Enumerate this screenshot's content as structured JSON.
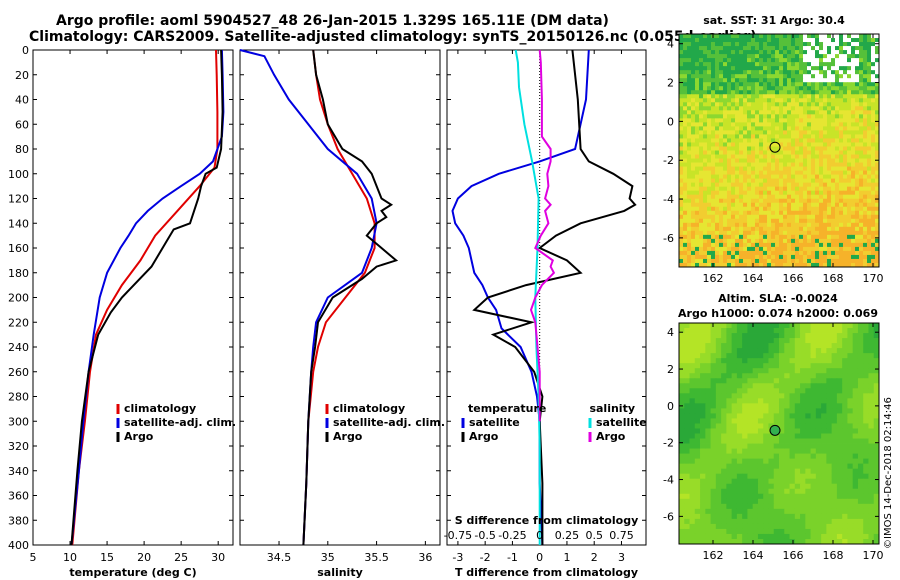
{
  "header": {
    "line1": "Argo profile: aoml 5904527_48 26-Jan-2015 1.329S 165.11E (DM data)",
    "line2": "Climatology: CARS2009. Satellite-adjusted climatology: synTS_20150126.nc (0.055d earlier)"
  },
  "watermark": "©IMOS 14-Dec-2018 02:14:46",
  "colors": {
    "clim": "#e00000",
    "sat": "#0000e0",
    "argo": "#000000",
    "sal_sat": "#00e0e0",
    "sal_argo": "#e000e0"
  },
  "chart_data": [
    {
      "type": "line",
      "name": "temperature",
      "xlabel": "temperature (deg C)",
      "ylabel": "",
      "xlim": [
        5,
        32
      ],
      "ylim": [
        0,
        400
      ],
      "xticks": [
        5,
        10,
        15,
        20,
        25,
        30
      ],
      "yticks": [
        0,
        20,
        40,
        60,
        80,
        100,
        120,
        140,
        160,
        180,
        200,
        220,
        240,
        260,
        280,
        300,
        320,
        340,
        360,
        380,
        400
      ],
      "legend": [
        "climatology",
        "satellite-adj. clim.",
        "Argo"
      ],
      "legend_position": "bottom-right",
      "series": [
        {
          "name": "climatology",
          "depth": [
            0,
            20,
            50,
            80,
            95,
            110,
            130,
            150,
            170,
            190,
            210,
            230,
            260,
            300,
            340,
            400
          ],
          "values": [
            29.7,
            29.8,
            29.9,
            29.9,
            29.5,
            27.5,
            24.5,
            21.5,
            19.5,
            17,
            15,
            13.5,
            12.7,
            12,
            11.2,
            10.3
          ]
        },
        {
          "name": "satellite-adj. clim.",
          "depth": [
            0,
            20,
            50,
            70,
            90,
            100,
            110,
            120,
            130,
            140,
            150,
            160,
            180,
            200,
            230,
            260,
            300,
            340,
            400
          ],
          "values": [
            30.5,
            30.6,
            30.7,
            30.5,
            29.3,
            27.5,
            25,
            22.5,
            20.5,
            18.9,
            17.9,
            16.8,
            15,
            14,
            13.2,
            12.5,
            11.8,
            11.2,
            10.2
          ]
        },
        {
          "name": "Argo",
          "depth": [
            0,
            20,
            50,
            80,
            95,
            100,
            110,
            120,
            140,
            145,
            155,
            175,
            200,
            212,
            230,
            260,
            300,
            340,
            400
          ],
          "values": [
            30.4,
            30.5,
            30.6,
            30.4,
            29.8,
            28.3,
            27.7,
            27.3,
            26.2,
            24,
            23,
            21,
            17,
            15.5,
            13.8,
            12.5,
            11.6,
            11,
            10.2
          ]
        }
      ]
    },
    {
      "type": "line",
      "name": "salinity",
      "xlabel": "salinity",
      "ylabel": "",
      "xlim": [
        34.1,
        36.15
      ],
      "ylim": [
        0,
        400
      ],
      "xticks": [
        34.5,
        35,
        35.5,
        36
      ],
      "legend": [
        "climatology",
        "satellite-adj. clim.",
        "Argo"
      ],
      "legend_position": "bottom-right",
      "series": [
        {
          "name": "climatology",
          "depth": [
            0,
            20,
            40,
            60,
            80,
            100,
            120,
            140,
            160,
            180,
            200,
            220,
            240,
            260,
            300,
            350,
            400
          ],
          "values": [
            34.85,
            34.88,
            34.92,
            35.0,
            35.1,
            35.25,
            35.4,
            35.48,
            35.48,
            35.38,
            35.18,
            34.98,
            34.9,
            34.85,
            34.8,
            34.78,
            34.75
          ]
        },
        {
          "name": "satellite-adj. clim.",
          "depth": [
            0,
            5,
            20,
            40,
            60,
            80,
            100,
            120,
            140,
            160,
            180,
            200,
            220,
            240,
            260,
            300,
            350,
            400
          ],
          "values": [
            34.1,
            34.35,
            34.45,
            34.6,
            34.8,
            35.0,
            35.3,
            35.45,
            35.5,
            35.45,
            35.35,
            35.0,
            34.88,
            34.85,
            34.83,
            34.8,
            34.78,
            34.75
          ]
        },
        {
          "name": "Argo",
          "depth": [
            0,
            20,
            40,
            60,
            80,
            90,
            100,
            110,
            120,
            125,
            130,
            135,
            140,
            150,
            160,
            170,
            175,
            185,
            200,
            220,
            240,
            260,
            300,
            350,
            400
          ],
          "values": [
            34.85,
            34.88,
            34.95,
            35.0,
            35.15,
            35.35,
            35.45,
            35.5,
            35.55,
            35.65,
            35.55,
            35.6,
            35.5,
            35.4,
            35.55,
            35.7,
            35.5,
            35.35,
            35.05,
            34.9,
            34.87,
            34.83,
            34.8,
            34.78,
            34.75
          ]
        }
      ]
    },
    {
      "type": "line",
      "name": "difference",
      "xlabel": "T difference from climatology",
      "x2label": "S difference from climatology",
      "xlim": [
        -3.4,
        3.9
      ],
      "ylim": [
        0,
        400
      ],
      "xticks": [
        -3,
        -2,
        -1,
        0,
        1,
        2,
        3
      ],
      "x2ticks": [
        "-0.75",
        "-0.5",
        "-0.25",
        "0",
        "0.25",
        "0.5",
        "0.75"
      ],
      "legend_left": [
        "temperature",
        "satellite",
        "Argo"
      ],
      "legend_right": [
        "salinity",
        "satellite",
        "Argo"
      ],
      "series": [
        {
          "name": "T satellite",
          "depth": [
            0,
            40,
            80,
            90,
            100,
            110,
            120,
            130,
            140,
            150,
            160,
            170,
            180,
            190,
            200,
            210,
            225,
            240,
            260,
            280,
            300,
            350,
            400
          ],
          "values": [
            1.8,
            1.7,
            1.3,
            0,
            -1.5,
            -2.5,
            -3.0,
            -3.2,
            -3.1,
            -2.8,
            -2.6,
            -2.5,
            -2.4,
            -2.1,
            -1.9,
            -1.6,
            -1.4,
            -0.7,
            -0.3,
            -0.1,
            0,
            0,
            0.1
          ]
        },
        {
          "name": "T Argo",
          "depth": [
            0,
            40,
            80,
            90,
            100,
            110,
            120,
            125,
            130,
            140,
            150,
            160,
            170,
            180,
            190,
            200,
            210,
            220,
            230,
            240,
            260,
            280,
            300,
            350,
            400
          ],
          "values": [
            1.2,
            1.4,
            1.5,
            1.8,
            2.7,
            3.4,
            3.3,
            3.5,
            3.1,
            1.5,
            0.6,
            0,
            1.0,
            1.5,
            -0.5,
            -1.9,
            -2.4,
            -0.3,
            -1.7,
            -0.9,
            -0.2,
            0.1,
            0,
            0.1,
            0.1
          ]
        },
        {
          "name": "S satellite",
          "depth": [
            0,
            10,
            30,
            60,
            90,
            120,
            160,
            200,
            240,
            280,
            320,
            360,
            400
          ],
          "values": [
            -0.22,
            -0.2,
            -0.19,
            -0.14,
            -0.07,
            -0.01,
            -0.02,
            -0.04,
            -0.03,
            -0.01,
            0,
            0,
            0
          ]
        },
        {
          "name": "S Argo",
          "depth": [
            0,
            10,
            40,
            70,
            80,
            90,
            100,
            110,
            120,
            125,
            130,
            140,
            150,
            160,
            170,
            175,
            180,
            190,
            200,
            210,
            220,
            240,
            260,
            280,
            300
          ],
          "values": [
            0,
            0.01,
            0.02,
            0.02,
            0.1,
            0.1,
            0.07,
            0.08,
            0.05,
            0.1,
            0.05,
            0.08,
            0.01,
            -0.04,
            0.12,
            0.1,
            0.13,
            0.02,
            -0.04,
            -0.08,
            -0.04,
            -0.02,
            0,
            0,
            0
          ]
        }
      ]
    },
    {
      "type": "heatmap",
      "name": "satellite SST map",
      "title": "sat. SST: 31 Argo: 30.4",
      "xlim": [
        160.3,
        170.3
      ],
      "ylim": [
        -7.5,
        4.5
      ],
      "xticks": [
        162,
        164,
        166,
        168,
        170
      ],
      "yticks": [
        4,
        2,
        0,
        -2,
        -4,
        -6
      ],
      "marker": [
        165.1,
        -1.33
      ]
    },
    {
      "type": "heatmap",
      "name": "altimetry SLA map",
      "title": "Altim. SLA: -0.0024",
      "subtitle": "Argo h1000: 0.074 h2000: 0.069",
      "xlim": [
        160.3,
        170.3
      ],
      "ylim": [
        -7.5,
        4.5
      ],
      "xticks": [
        162,
        164,
        166,
        168,
        170
      ],
      "yticks": [
        4,
        2,
        0,
        -2,
        -4,
        -6
      ],
      "marker": [
        165.1,
        -1.33
      ]
    }
  ]
}
